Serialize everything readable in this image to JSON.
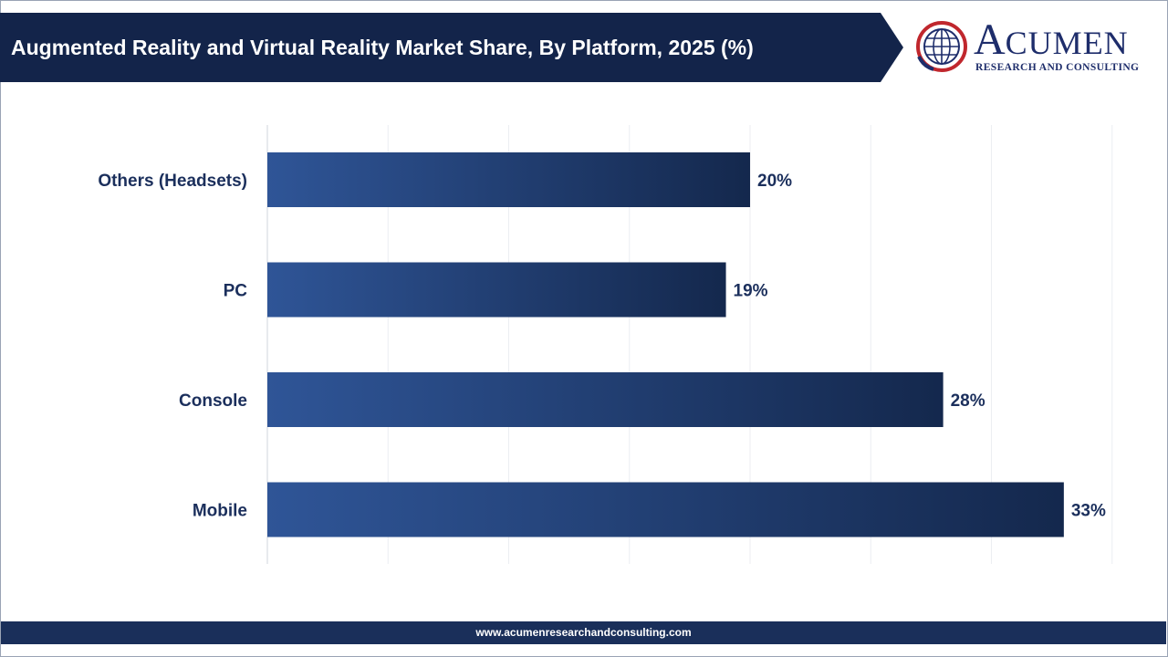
{
  "header": {
    "title": "Augmented Reality and Virtual Reality Market Share, By Platform, 2025 (%)"
  },
  "logo": {
    "name_first": "A",
    "name_rest": "CUMEN",
    "subtitle": "RESEARCH AND CONSULTING",
    "icon": "globe-icon"
  },
  "footer": {
    "url": "www.acumenresearchandconsulting.com"
  },
  "colors": {
    "header_bg": "#13244a",
    "bar_start": "#2f5597",
    "bar_end": "#14284d",
    "footer_bg": "#1a2f5a",
    "text": "#1b2f5c"
  },
  "chart_data": {
    "type": "bar",
    "orientation": "horizontal",
    "title": "Augmented Reality and Virtual Reality Market Share, By Platform, 2025 (%)",
    "categories": [
      "Others (Headsets)",
      "PC",
      "Console",
      "Mobile"
    ],
    "values": [
      20,
      19,
      28,
      33
    ],
    "value_labels": [
      "20%",
      "19%",
      "28%",
      "33%"
    ],
    "unit": "%",
    "xlim": [
      0,
      35
    ],
    "grid": true,
    "legend": "none"
  }
}
